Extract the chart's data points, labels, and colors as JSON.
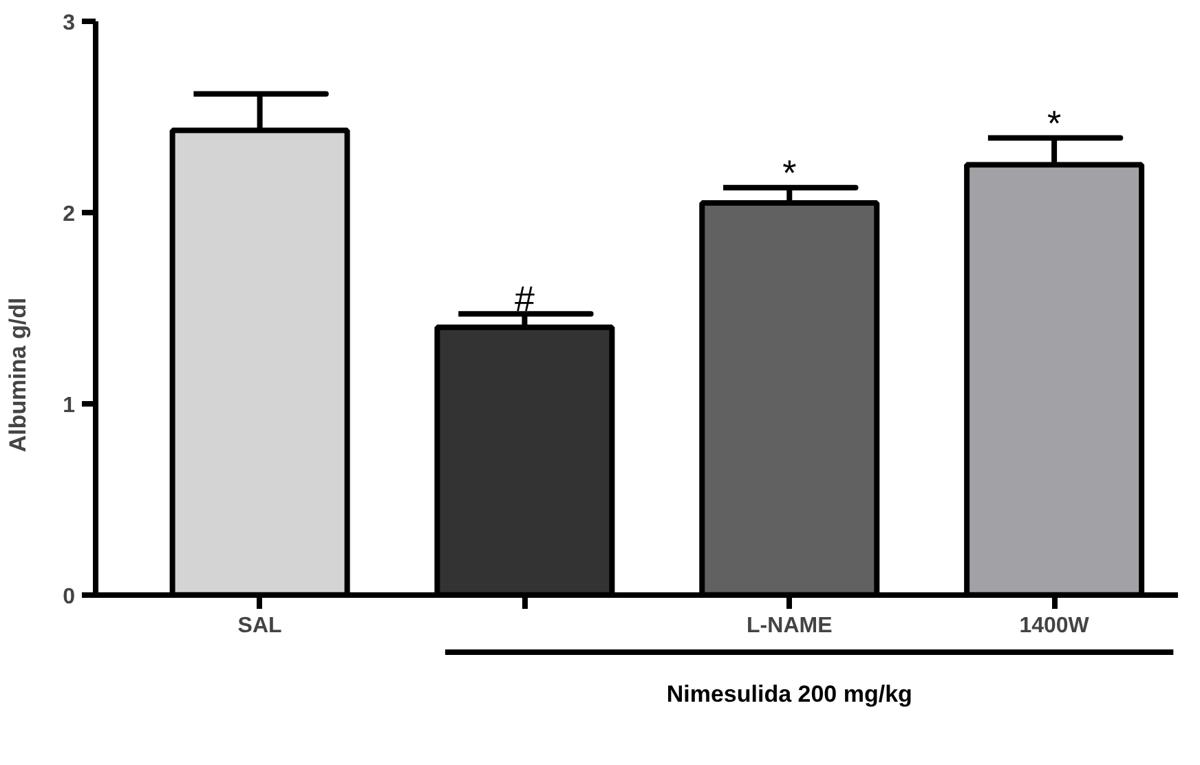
{
  "chart_data": {
    "type": "bar",
    "ylabel": "Albumina g/dl",
    "categories": [
      "SAL",
      null,
      "L-NAME",
      "1400W"
    ],
    "values": [
      2.43,
      1.4,
      2.05,
      2.25
    ],
    "colors": [
      "#d4d4d4",
      "#333333",
      "#616161",
      "#a2a1a5"
    ],
    "errors": [
      [
        2.43,
        2.62
      ],
      [
        1.4,
        1.47
      ],
      [
        2.05,
        2.13
      ],
      [
        2.25,
        2.39
      ]
    ],
    "value_labels": [
      null,
      "#",
      "*",
      "*"
    ],
    "annotations": [
      "Nimesulida 200 mg/kg"
    ],
    "ylim": [
      0,
      3
    ],
    "yticks": [
      0,
      1,
      2,
      3
    ],
    "grid": false
  }
}
